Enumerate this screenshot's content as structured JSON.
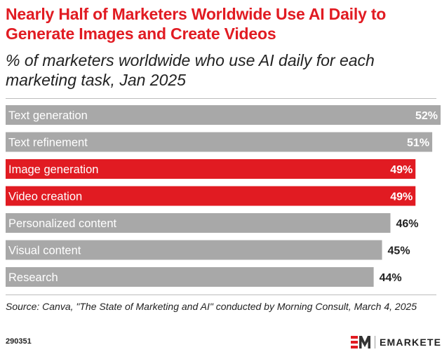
{
  "title": "Nearly Half of Marketers Worldwide Use AI Daily to Generate Images and Create Videos",
  "subtitle": "% of marketers worldwide who use AI daily for each marketing task, Jan 2025",
  "source": "Source: Canva, \"The State of Marketing and AI\" conducted by Morning Consult, March 4, 2025",
  "chart_id": "290351",
  "brand": {
    "name": "EMARKETER",
    "logo": "em-logo"
  },
  "colors": {
    "default_bar": "#a8a8a8",
    "highlight_bar": "#e11b22",
    "label_in_bar": "#ffffff",
    "value_outside": "#222222"
  },
  "chart_data": {
    "type": "bar",
    "orientation": "horizontal",
    "categories": [
      "Text generation",
      "Text refinement",
      "Image generation",
      "Video creation",
      "Personalized content",
      "Visual content",
      "Research"
    ],
    "values": [
      52,
      51,
      49,
      49,
      46,
      45,
      44
    ],
    "value_format": "percent",
    "highlighted": [
      "Image generation",
      "Video creation"
    ],
    "xlim": [
      0,
      52
    ],
    "grid": false,
    "legend": "none"
  }
}
